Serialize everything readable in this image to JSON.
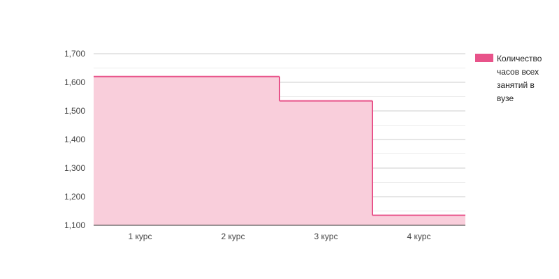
{
  "chart_data": {
    "type": "area",
    "step": true,
    "title": "",
    "xlabel": "",
    "ylabel": "",
    "categories": [
      "1 курс",
      "2 курс",
      "3 курс",
      "4 курс"
    ],
    "series": [
      {
        "name": "Количество часов всех занятий в вузе",
        "values": [
          1620,
          1620,
          1535,
          1135
        ],
        "color": "#e8538a",
        "fill": "#f9cedb"
      }
    ],
    "ylim": [
      1100,
      1700
    ],
    "yticks": [
      1100,
      1200,
      1300,
      1400,
      1500,
      1600,
      1700
    ],
    "ytick_labels": [
      "1,100",
      "1,200",
      "1,300",
      "1,400",
      "1,500",
      "1,600",
      "1,700"
    ],
    "grid": true,
    "legend": {
      "position": "right",
      "lines": [
        "Количество",
        "часов всех",
        "занятий в",
        "вузе"
      ]
    }
  }
}
